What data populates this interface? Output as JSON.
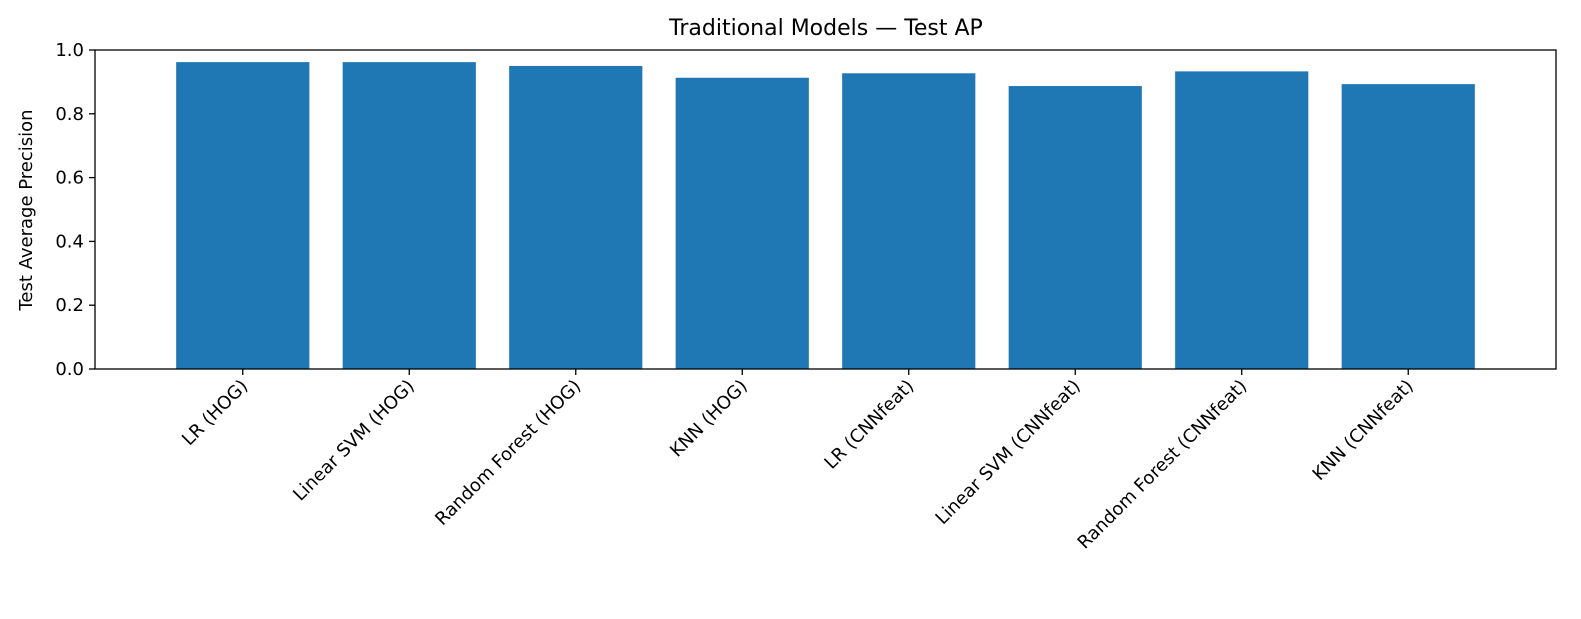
{
  "chart_data": {
    "type": "bar",
    "title": "Traditional Models — Test AP",
    "xlabel": "",
    "ylabel": "Test Average Precision",
    "categories": [
      "LR (HOG)",
      "Linear SVM (HOG)",
      "Random Forest (HOG)",
      "KNN (HOG)",
      "LR (CNNfeat)",
      "Linear SVM (CNNfeat)",
      "Random Forest (CNNfeat)",
      "KNN (CNNfeat)"
    ],
    "values": [
      0.962,
      0.962,
      0.95,
      0.913,
      0.927,
      0.887,
      0.933,
      0.893
    ],
    "ylim": [
      0,
      1.0
    ],
    "yticks": [
      "0.0",
      "0.2",
      "0.4",
      "0.6",
      "0.8",
      "1.0"
    ],
    "ytick_values": [
      0.0,
      0.2,
      0.4,
      0.6,
      0.8,
      1.0
    ],
    "grid": false,
    "bar_color": "#1f77b4"
  }
}
